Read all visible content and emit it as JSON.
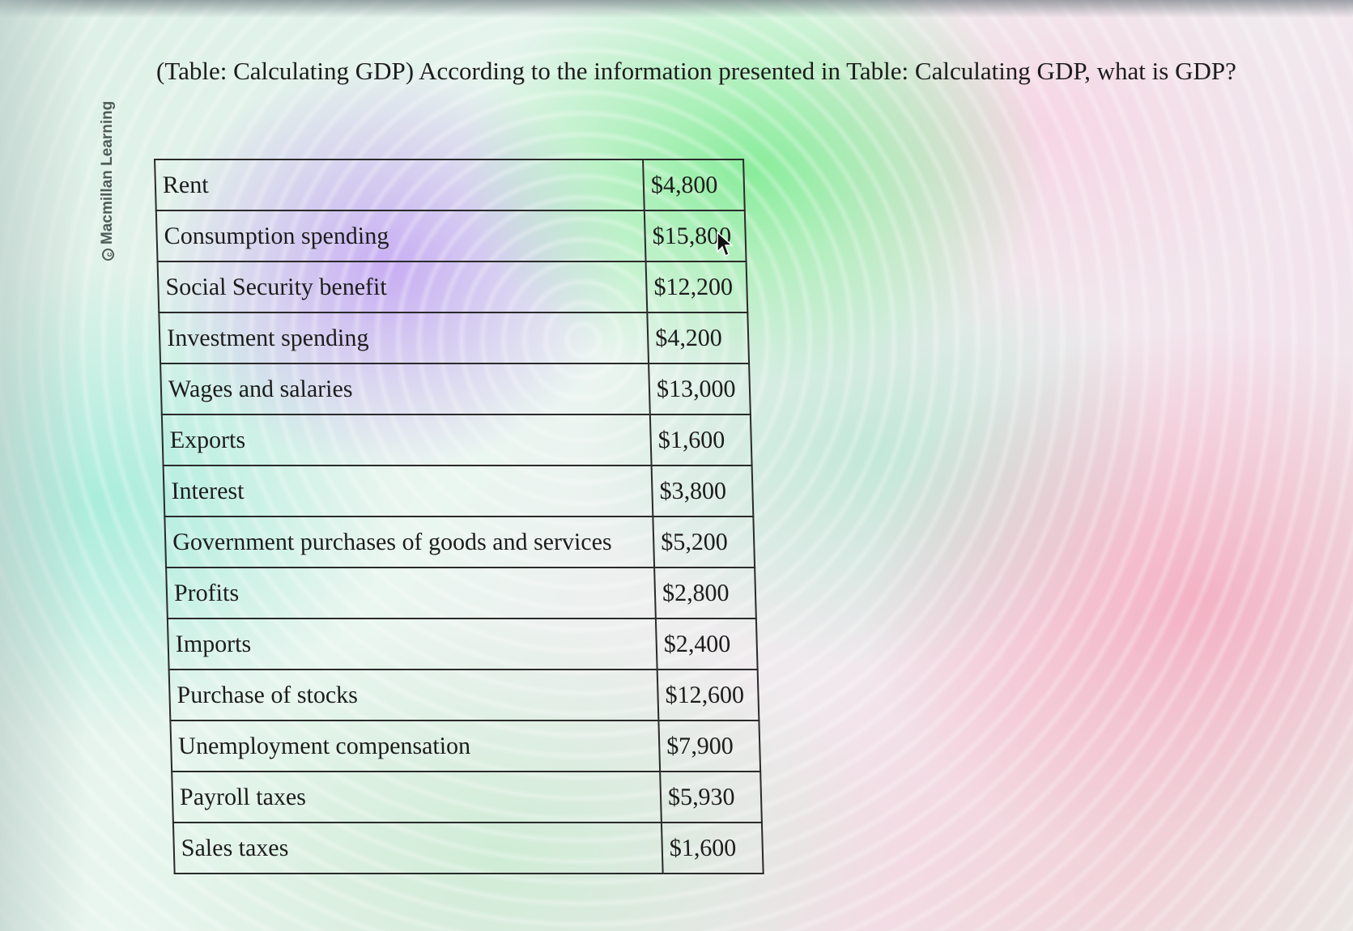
{
  "credit": {
    "text": "Macmillan Learning",
    "icon": "copyright-icon"
  },
  "question": {
    "text": "(Table: Calculating GDP) According to the information presented in Table: Calculating GDP, what is GDP?"
  },
  "table": {
    "rows": [
      {
        "label": "Rent",
        "value": "$4,800"
      },
      {
        "label": "Consumption spending",
        "value": "$15,800"
      },
      {
        "label": "Social Security benefit",
        "value": "$12,200"
      },
      {
        "label": "Investment spending",
        "value": "$4,200"
      },
      {
        "label": "Wages and salaries",
        "value": "$13,000"
      },
      {
        "label": "Exports",
        "value": "$1,600"
      },
      {
        "label": "Interest",
        "value": "$3,800"
      },
      {
        "label": "Government purchases of goods and services",
        "value": "$5,200"
      },
      {
        "label": "Profits",
        "value": "$2,800"
      },
      {
        "label": "Imports",
        "value": "$2,400"
      },
      {
        "label": "Purchase of stocks",
        "value": "$12,600"
      },
      {
        "label": "Unemployment compensation",
        "value": "$7,900"
      },
      {
        "label": "Payroll taxes",
        "value": "$5,930"
      },
      {
        "label": "Sales taxes",
        "value": "$1,600"
      }
    ]
  },
  "cursor": {
    "icon": "mouse-pointer-icon"
  }
}
